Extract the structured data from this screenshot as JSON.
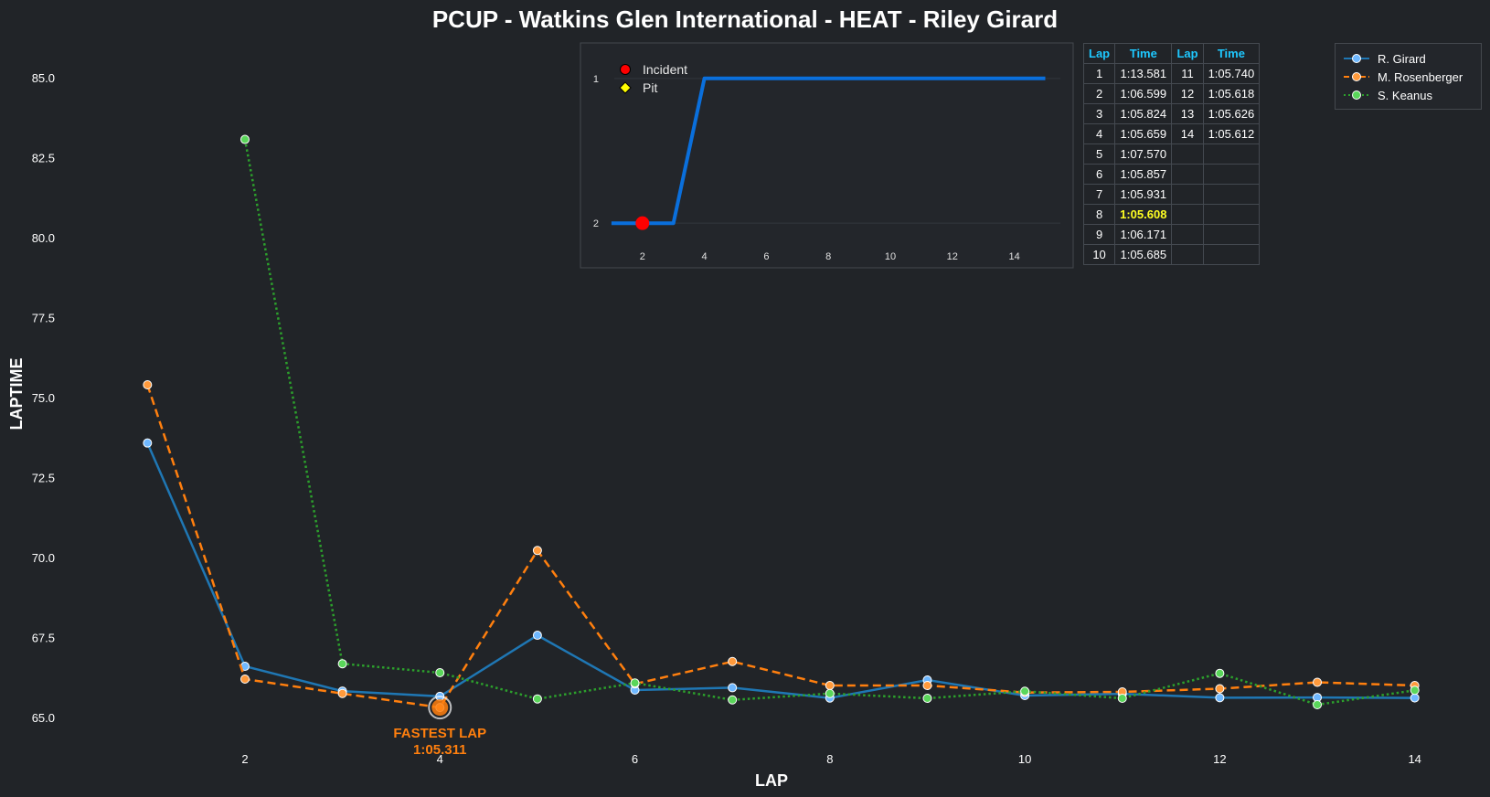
{
  "chart_data": [
    {
      "type": "line",
      "title": "PCUP - Watkins Glen International - HEAT - Riley Girard",
      "xlabel": "LAP",
      "ylabel": "LAPTIME",
      "xlim": [
        0.5,
        14.5
      ],
      "ylim": [
        64.0,
        86.2
      ],
      "xticks": [
        2,
        4,
        6,
        8,
        10,
        12,
        14
      ],
      "yticks": [
        65.0,
        67.5,
        70.0,
        72.5,
        75.0,
        77.5,
        80.0,
        82.5,
        85.0
      ],
      "grid": false,
      "legend_position": "top-right",
      "x": [
        1,
        2,
        3,
        4,
        5,
        6,
        7,
        8,
        9,
        10,
        11,
        12,
        13,
        14
      ],
      "series": [
        {
          "name": "R. Girard",
          "color": "#1f77b4",
          "marker_fill": "#6fb8ff",
          "dash": "solid",
          "values": [
            73.581,
            66.599,
            65.824,
            65.659,
            67.57,
            65.857,
            65.931,
            65.608,
            66.171,
            65.685,
            65.74,
            65.618,
            65.626,
            65.612
          ]
        },
        {
          "name": "M. Rosenberger",
          "color": "#ff7f0e",
          "marker_fill": "#ff9a3c",
          "dash": "dashed",
          "values": [
            75.4,
            66.2,
            65.75,
            65.311,
            70.22,
            66.05,
            66.75,
            66.0,
            66.0,
            65.78,
            65.8,
            65.9,
            66.1,
            66.0
          ]
        },
        {
          "name": "S. Keanus",
          "color": "#2ca02c",
          "marker_fill": "#5ad65a",
          "dash": "dotted",
          "values": [
            null,
            83.07,
            66.68,
            66.4,
            65.58,
            66.08,
            65.55,
            65.75,
            65.6,
            65.82,
            65.6,
            66.38,
            65.4,
            65.85
          ]
        }
      ],
      "annotations": [
        {
          "text": "FASTEST LAP",
          "value_text": "1:05.311",
          "x": 4,
          "y": 65.311,
          "color": "#ff7f0e"
        }
      ]
    },
    {
      "type": "line",
      "xlim": [
        0,
        15.9
      ],
      "ylim": [
        2.1,
        0.9
      ],
      "xticks": [
        2,
        4,
        6,
        8,
        10,
        12,
        14
      ],
      "yticks": [
        1,
        2
      ],
      "line_color": "#0a6fdc",
      "x": [
        1,
        2,
        3,
        4,
        5,
        6,
        7,
        8,
        9,
        10,
        11,
        12,
        13,
        14,
        15
      ],
      "y": [
        2,
        2,
        2,
        1,
        1,
        1,
        1,
        1,
        1,
        1,
        1,
        1,
        1,
        1,
        1
      ],
      "incidents": [
        {
          "x": 2,
          "y": 2
        }
      ],
      "pits": [],
      "legend": [
        {
          "label": "Incident",
          "marker": "circle",
          "color": "#ff0000"
        },
        {
          "label": "Pit",
          "marker": "diamond",
          "color": "#ffff00"
        }
      ]
    }
  ],
  "lap_table": {
    "headers": [
      "Lap",
      "Time",
      "Lap",
      "Time"
    ],
    "fastest_lap": 8,
    "rows": [
      {
        "lap_a": "1",
        "time_a": "1:13.581",
        "lap_b": "11",
        "time_b": "1:05.740"
      },
      {
        "lap_a": "2",
        "time_a": "1:06.599",
        "lap_b": "12",
        "time_b": "1:05.618"
      },
      {
        "lap_a": "3",
        "time_a": "1:05.824",
        "lap_b": "13",
        "time_b": "1:05.626"
      },
      {
        "lap_a": "4",
        "time_a": "1:05.659",
        "lap_b": "14",
        "time_b": "1:05.612"
      },
      {
        "lap_a": "5",
        "time_a": "1:07.570",
        "lap_b": "",
        "time_b": ""
      },
      {
        "lap_a": "6",
        "time_a": "1:05.857",
        "lap_b": "",
        "time_b": ""
      },
      {
        "lap_a": "7",
        "time_a": "1:05.931",
        "lap_b": "",
        "time_b": ""
      },
      {
        "lap_a": "8",
        "time_a": "1:05.608",
        "lap_b": "",
        "time_b": ""
      },
      {
        "lap_a": "9",
        "time_a": "1:06.171",
        "lap_b": "",
        "time_b": ""
      },
      {
        "lap_a": "10",
        "time_a": "1:05.685",
        "lap_b": "",
        "time_b": ""
      }
    ]
  },
  "colors": {
    "background": "#212428",
    "header_text": "#1ec8ff",
    "fastest_text": "#ffff22",
    "table_border": "#444950"
  }
}
